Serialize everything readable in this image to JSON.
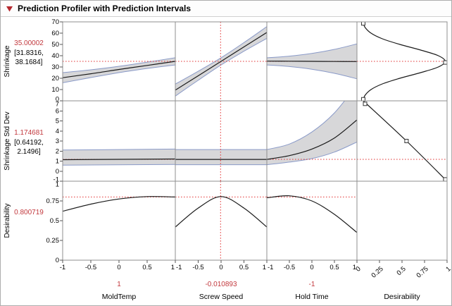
{
  "header": {
    "title": "Prediction Profiler with Prediction Intervals"
  },
  "chart_data": {
    "type": "profiler",
    "rows": [
      {
        "label": "Shrinkage",
        "value": "35.00002",
        "ci_line1": "[31.8316,",
        "ci_line2": "38.1684]",
        "ylim": [
          0,
          70
        ],
        "yticks": [
          [
            0,
            "0"
          ],
          [
            10,
            "10"
          ],
          [
            20,
            "20"
          ],
          [
            30,
            "30"
          ],
          [
            40,
            "40"
          ],
          [
            50,
            "50"
          ],
          [
            60,
            "60"
          ],
          [
            70,
            "70"
          ]
        ]
      },
      {
        "label": "Shrinkage Std Dev",
        "value": "1.174681",
        "ci_line1": "[0.64192,",
        "ci_line2": "2.1496]",
        "ylim": [
          -1,
          7
        ],
        "yticks": [
          [
            -1,
            "-1"
          ],
          [
            0,
            "0"
          ],
          [
            1,
            "1"
          ],
          [
            2,
            "2"
          ],
          [
            3,
            "3"
          ],
          [
            4,
            "4"
          ],
          [
            5,
            "5"
          ],
          [
            6,
            "6"
          ],
          [
            7,
            "7"
          ]
        ]
      },
      {
        "label": "Desirability",
        "value": "0.800719",
        "ylim": [
          0,
          1
        ],
        "yticks": [
          [
            0,
            "0"
          ],
          [
            0.25,
            "0.25"
          ],
          [
            0.5,
            "0.5"
          ],
          [
            0.75,
            "0.75"
          ],
          [
            1,
            "1"
          ]
        ]
      }
    ],
    "columns": [
      {
        "label": "MoldTemp",
        "current_label": "1",
        "current": 1,
        "xlim": [
          -1,
          1
        ],
        "xticks": [
          [
            -1,
            "-1"
          ],
          [
            -0.5,
            "-0.5"
          ],
          [
            0,
            "0"
          ],
          [
            0.5,
            "0.5"
          ],
          [
            1,
            "1"
          ]
        ]
      },
      {
        "label": "Screw Speed",
        "current_label": "-0.010893",
        "current": -0.010893,
        "xlim": [
          -1,
          1
        ],
        "xticks": [
          [
            -1,
            "-1"
          ],
          [
            -0.5,
            "-0.5"
          ],
          [
            0,
            "0"
          ],
          [
            0.5,
            "0.5"
          ],
          [
            1,
            "1"
          ]
        ]
      },
      {
        "label": "Hold Time",
        "current_label": "-1",
        "current": -1,
        "xlim": [
          -1,
          1
        ],
        "xticks": [
          [
            -1,
            "-1"
          ],
          [
            -0.5,
            "-0.5"
          ],
          [
            0,
            "0"
          ],
          [
            0.5,
            "0.5"
          ],
          [
            1,
            "1"
          ]
        ]
      },
      {
        "label": "Desirability",
        "xlim": [
          0,
          1
        ],
        "rotated_ticks": true,
        "xticks": [
          [
            0,
            "0"
          ],
          [
            0.25,
            "0.25"
          ],
          [
            0.5,
            "0.5"
          ],
          [
            0.75,
            "0.75"
          ],
          [
            1,
            "1"
          ]
        ]
      }
    ],
    "cells": [
      [
        {
          "band": {
            "x": [
              -1,
              -0.5,
              0,
              0.5,
              1
            ],
            "upper": [
              25.0,
              27.5,
              30.6,
              34.3,
              38.2
            ],
            "lower": [
              16.0,
              20.6,
              25.0,
              28.7,
              31.8
            ]
          },
          "line": {
            "x": [
              -1,
              -0.5,
              0,
              0.5,
              1
            ],
            "y": [
              20.5,
              24.0,
              27.8,
              31.4,
              35.0
            ]
          },
          "vline": 1,
          "hline": 35.00002
        },
        {
          "band": {
            "x": [
              -1,
              -0.5,
              0,
              0.5,
              1
            ],
            "upper": [
              14.8,
              26.2,
              38.2,
              51.6,
              65.8
            ],
            "lower": [
              4.2,
              18.2,
              31.8,
              44.0,
              55.4
            ]
          },
          "line": {
            "x": [
              -1,
              -0.5,
              0,
              0.5,
              1
            ],
            "y": [
              9.5,
              22.2,
              35.0,
              47.8,
              60.6
            ]
          },
          "vline": -0.010893,
          "hline": 35.00002
        },
        {
          "band": {
            "x": [
              -1,
              -0.5,
              0,
              0.5,
              1
            ],
            "upper": [
              38.2,
              39.6,
              42.0,
              45.6,
              50.5
            ],
            "lower": [
              31.8,
              30.4,
              28.0,
              24.4,
              19.5
            ]
          },
          "line": {
            "x": [
              -1,
              -0.5,
              0,
              0.5,
              1
            ],
            "y": [
              35.2,
              35.1,
              35.0,
              34.9,
              34.8
            ]
          },
          "vline": -1,
          "hline": 35.00002
        },
        {
          "line": {
            "x": [
              0.063,
              0.091,
              0.156,
              0.282,
              0.476,
              0.707,
              0.903,
              0.98,
              0.903,
              0.707,
              0.476,
              0.282,
              0.156,
              0.091,
              0.063
            ],
            "y": [
              0,
              5,
              10,
              15,
              20,
              25,
              30,
              35,
              40,
              45,
              50,
              55,
              60,
              65,
              70
            ]
          },
          "markers": [
            [
              0.07,
              68.6
            ],
            [
              0.98,
              34.0
            ],
            [
              0.07,
              1.4
            ]
          ],
          "hline": 35.00002
        }
      ],
      [
        {
          "band": {
            "x": [
              -1,
              1
            ],
            "upper": [
              2.1,
              2.2
            ],
            "lower": [
              0.6,
              0.66
            ]
          },
          "line": {
            "x": [
              -1,
              1
            ],
            "y": [
              1.14,
              1.21
            ]
          },
          "vline": 1,
          "hline": 1.174681
        },
        {
          "band": {
            "x": [
              -1,
              1
            ],
            "upper": [
              2.15,
              2.15
            ],
            "lower": [
              0.64,
              0.64
            ]
          },
          "line": {
            "x": [
              -1,
              1
            ],
            "y": [
              1.17,
              1.17
            ]
          },
          "vline": -0.010893,
          "hline": 1.174681
        },
        {
          "band": {
            "x": [
              -1,
              -0.5,
              0,
              0.5,
              1
            ],
            "upper": [
              2.15,
              2.7,
              3.9,
              5.8,
              8.6
            ],
            "lower": [
              0.64,
              0.9,
              1.25,
              1.9,
              2.9
            ]
          },
          "line": {
            "x": [
              -1,
              -0.5,
              0,
              0.5,
              1
            ],
            "y": [
              1.17,
              1.55,
              2.2,
              3.3,
              5.1
            ]
          },
          "vline": -1,
          "hline": 1.174681
        },
        {
          "line": {
            "x": [
              0.07,
              0.55,
              1.0
            ],
            "y": [
              7.0,
              3.0,
              -1.0
            ]
          },
          "markers": [
            [
              0.09,
              6.7
            ],
            [
              0.55,
              3.0
            ],
            [
              0.98,
              -0.82
            ]
          ],
          "hline": 1.174681
        }
      ],
      [
        {
          "line": {
            "x": [
              -1,
              -0.5,
              0,
              0.5,
              1
            ],
            "y": [
              0.62,
              0.71,
              0.775,
              0.805,
              0.8
            ]
          },
          "vline": 1,
          "hline": 0.800719
        },
        {
          "line": {
            "x": [
              -1,
              -0.5,
              0,
              0.5,
              1
            ],
            "y": [
              0.42,
              0.66,
              0.805,
              0.66,
              0.42
            ]
          },
          "vline": -0.010893,
          "hline": 0.800719
        },
        {
          "line": {
            "x": [
              -1,
              -0.5,
              0,
              0.5,
              1
            ],
            "y": [
              0.79,
              0.815,
              0.75,
              0.58,
              0.35
            ]
          },
          "vline": -1,
          "hline": 0.800719
        },
        {}
      ]
    ],
    "colors": {
      "band_fill": "#d7d7d9",
      "band_edge": "#8a9ac8",
      "line": "#1a1a1a",
      "crosshair": "#e23a3a",
      "value_text": "#c2383d",
      "disclosure": "#b5282e",
      "grid_border": "#8f8f8f"
    }
  }
}
